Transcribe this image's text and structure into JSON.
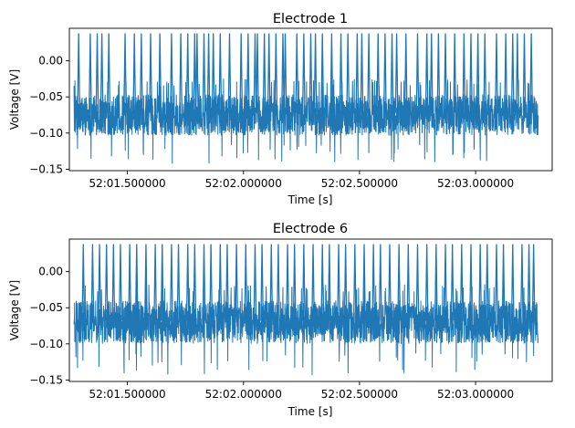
{
  "figure": {
    "background": "#ffffff"
  },
  "chart_data": [
    {
      "type": "line",
      "title": "Electrode 1",
      "xlabel": "Time [s]",
      "ylabel": "Voltage [V]",
      "color": "#1f77b4",
      "grid": false,
      "legend": "none",
      "xlim": [
        "52:01.250000",
        "52:03.330000"
      ],
      "ylim": [
        -0.152,
        0.045
      ],
      "xticks": [
        "52:01.500000",
        "52:02.000000",
        "52:02.500000",
        "52:03.000000"
      ],
      "yticks": [
        0.0,
        -0.05,
        -0.1,
        -0.15
      ],
      "ytick_labels": [
        "0.00",
        "−0.05",
        "−0.10",
        "−0.15"
      ],
      "series": [
        {
          "x_start": "52:01.270000",
          "x_end": "52:03.270000",
          "baseline": -0.072,
          "band_low": -0.115,
          "band_high": -0.035,
          "min": -0.145,
          "spike_peak": 0.038,
          "spike_times": [
            "52:01.290",
            "52:01.340",
            "52:01.370",
            "52:01.390",
            "52:01.420",
            "52:01.490",
            "52:01.530",
            "52:01.560",
            "52:01.600",
            "52:01.640",
            "52:01.690",
            "52:01.730",
            "52:01.760",
            "52:01.790",
            "52:01.800",
            "52:01.830",
            "52:01.850",
            "52:01.870",
            "52:01.900",
            "52:01.940",
            "52:01.990",
            "52:02.020",
            "52:02.050",
            "52:02.060",
            "52:02.090",
            "52:02.110",
            "52:02.140",
            "52:02.170",
            "52:02.180",
            "52:02.230",
            "52:02.260",
            "52:02.290",
            "52:02.310",
            "52:02.340",
            "52:02.380",
            "52:02.420",
            "52:02.450",
            "52:02.490",
            "52:02.510",
            "52:02.540",
            "52:02.580",
            "52:02.610",
            "52:02.640",
            "52:02.660",
            "52:02.700",
            "52:02.750",
            "52:02.790",
            "52:02.810",
            "52:02.840",
            "52:02.870",
            "52:02.910",
            "52:02.950",
            "52:02.980",
            "52:03.010",
            "52:03.040",
            "52:03.090",
            "52:03.130",
            "52:03.160",
            "52:03.180",
            "52:03.210",
            "52:03.240"
          ]
        }
      ]
    },
    {
      "type": "line",
      "title": "Electrode 6",
      "xlabel": "Time [s]",
      "ylabel": "Voltage [V]",
      "color": "#1f77b4",
      "grid": false,
      "legend": "none",
      "xlim": [
        "52:01.250000",
        "52:03.330000"
      ],
      "ylim": [
        -0.152,
        0.045
      ],
      "xticks": [
        "52:01.500000",
        "52:02.000000",
        "52:02.500000",
        "52:03.000000"
      ],
      "yticks": [
        0.0,
        -0.05,
        -0.1,
        -0.15
      ],
      "ytick_labels": [
        "0.00",
        "−0.05",
        "−0.10",
        "−0.15"
      ],
      "series": [
        {
          "x_start": "52:01.270000",
          "x_end": "52:03.270000",
          "baseline": -0.068,
          "band_low": -0.112,
          "band_high": -0.028,
          "min": -0.143,
          "spike_peak": 0.038,
          "spike_times": [
            "52:01.310",
            "52:01.350",
            "52:01.380",
            "52:01.410",
            "52:01.440",
            "52:01.470",
            "52:01.510",
            "52:01.540",
            "52:01.580",
            "52:01.620",
            "52:01.650",
            "52:01.690",
            "52:01.720",
            "52:01.760",
            "52:01.790",
            "52:01.830",
            "52:01.860",
            "52:01.900",
            "52:01.930",
            "52:01.970",
            "52:02.010",
            "52:02.050",
            "52:02.080",
            "52:02.120",
            "52:02.150",
            "52:02.190",
            "52:02.220",
            "52:02.260",
            "52:02.300",
            "52:02.340",
            "52:02.370",
            "52:02.410",
            "52:02.440",
            "52:02.480",
            "52:02.520",
            "52:02.560",
            "52:02.590",
            "52:02.630",
            "52:02.670",
            "52:02.710",
            "52:02.750",
            "52:02.790",
            "52:02.830",
            "52:02.870",
            "52:02.900",
            "52:02.940",
            "52:02.980",
            "52:03.020",
            "52:03.050",
            "52:03.090",
            "52:03.120",
            "52:03.160",
            "52:03.200",
            "52:03.230",
            "52:03.250"
          ]
        }
      ]
    }
  ]
}
